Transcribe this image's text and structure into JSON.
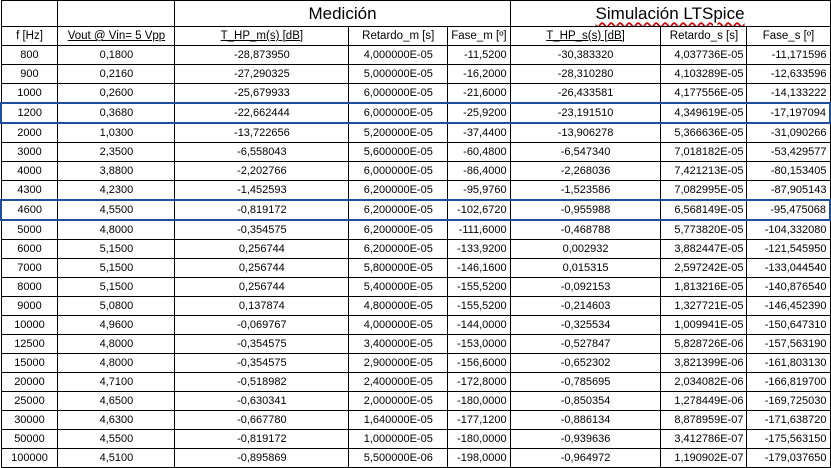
{
  "groups": {
    "medicion": "Medición",
    "simulacion": "Simulación LTSpice"
  },
  "headers": [
    "f [Hz]",
    "Vout @ Vin= 5 Vpp",
    "T_HP_m(s) [dB]",
    "Retardo_m [s]",
    "Fase_m [º]",
    "T_HP_s(s) [dB]",
    "Retardo_s [s]",
    "Fase_s [º]"
  ],
  "highlight_color": "#1f4e9c",
  "rows": [
    {
      "f": "800",
      "vout": "0,1800",
      "thpm": "-28,873950",
      "retm": "4,000000E-05",
      "fasem": "-11,5200",
      "thps": "-30,383320",
      "rets": "4,037736E-05",
      "fases": "-11,171596",
      "hl": false
    },
    {
      "f": "900",
      "vout": "0,2160",
      "thpm": "-27,290325",
      "retm": "5,000000E-05",
      "fasem": "-16,2000",
      "thps": "-28,310280",
      "rets": "4,103289E-05",
      "fases": "-12,633596",
      "hl": false
    },
    {
      "f": "1000",
      "vout": "0,2600",
      "thpm": "-25,679933",
      "retm": "6,000000E-05",
      "fasem": "-21,6000",
      "thps": "-26,433581",
      "rets": "4,177556E-05",
      "fases": "-14,133222",
      "hl": false
    },
    {
      "f": "1200",
      "vout": "0,3680",
      "thpm": "-22,662444",
      "retm": "6,000000E-05",
      "fasem": "-25,9200",
      "thps": "-23,191510",
      "rets": "4,349619E-05",
      "fases": "-17,197094",
      "hl": true
    },
    {
      "f": "2000",
      "vout": "1,0300",
      "thpm": "-13,722656",
      "retm": "5,200000E-05",
      "fasem": "-37,4400",
      "thps": "-13,906278",
      "rets": "5,366636E-05",
      "fases": "-31,090266",
      "hl": false
    },
    {
      "f": "3000",
      "vout": "2,3500",
      "thpm": "-6,558043",
      "retm": "5,600000E-05",
      "fasem": "-60,4800",
      "thps": "-6,547340",
      "rets": "7,018182E-05",
      "fases": "-53,429577",
      "hl": false
    },
    {
      "f": "4000",
      "vout": "3,8800",
      "thpm": "-2,202766",
      "retm": "6,000000E-05",
      "fasem": "-86,4000",
      "thps": "-2,268036",
      "rets": "7,421213E-05",
      "fases": "-80,153405",
      "hl": false
    },
    {
      "f": "4300",
      "vout": "4,2300",
      "thpm": "-1,452593",
      "retm": "6,200000E-05",
      "fasem": "-95,9760",
      "thps": "-1,523586",
      "rets": "7,082995E-05",
      "fases": "-87,905143",
      "hl": false
    },
    {
      "f": "4600",
      "vout": "4,5500",
      "thpm": "-0,819172",
      "retm": "6,200000E-05",
      "fasem": "-102,6720",
      "thps": "-0,955988",
      "rets": "6,568149E-05",
      "fases": "-95,475068",
      "hl": true
    },
    {
      "f": "5000",
      "vout": "4,8000",
      "thpm": "-0,354575",
      "retm": "6,200000E-05",
      "fasem": "-111,6000",
      "thps": "-0,468788",
      "rets": "5,773820E-05",
      "fases": "-104,332080",
      "hl": false
    },
    {
      "f": "6000",
      "vout": "5,1500",
      "thpm": "0,256744",
      "retm": "6,200000E-05",
      "fasem": "-133,9200",
      "thps": "0,002932",
      "rets": "3,882447E-05",
      "fases": "-121,545950",
      "hl": false
    },
    {
      "f": "7000",
      "vout": "5,1500",
      "thpm": "0,256744",
      "retm": "5,800000E-05",
      "fasem": "-146,1600",
      "thps": "0,015315",
      "rets": "2,597242E-05",
      "fases": "-133,044540",
      "hl": false
    },
    {
      "f": "8000",
      "vout": "5,1500",
      "thpm": "0,256744",
      "retm": "5,400000E-05",
      "fasem": "-155,5200",
      "thps": "-0,092153",
      "rets": "1,813216E-05",
      "fases": "-140,876540",
      "hl": false
    },
    {
      "f": "9000",
      "vout": "5,0800",
      "thpm": "0,137874",
      "retm": "4,800000E-05",
      "fasem": "-155,5200",
      "thps": "-0,214603",
      "rets": "1,327721E-05",
      "fases": "-146,452390",
      "hl": false
    },
    {
      "f": "10000",
      "vout": "4,9600",
      "thpm": "-0,069767",
      "retm": "4,000000E-05",
      "fasem": "-144,0000",
      "thps": "-0,325534",
      "rets": "1,009941E-05",
      "fases": "-150,647310",
      "hl": false
    },
    {
      "f": "12500",
      "vout": "4,8000",
      "thpm": "-0,354575",
      "retm": "3,400000E-05",
      "fasem": "-153,0000",
      "thps": "-0,527847",
      "rets": "5,828726E-06",
      "fases": "-157,563190",
      "hl": false
    },
    {
      "f": "15000",
      "vout": "4,8000",
      "thpm": "-0,354575",
      "retm": "2,900000E-05",
      "fasem": "-156,6000",
      "thps": "-0,652302",
      "rets": "3,821399E-06",
      "fases": "-161,803130",
      "hl": false
    },
    {
      "f": "20000",
      "vout": "4,7100",
      "thpm": "-0,518982",
      "retm": "2,400000E-05",
      "fasem": "-172,8000",
      "thps": "-0,785695",
      "rets": "2,034082E-06",
      "fases": "-166,819700",
      "hl": false
    },
    {
      "f": "25000",
      "vout": "4,6500",
      "thpm": "-0,630341",
      "retm": "2,000000E-05",
      "fasem": "-180,0000",
      "thps": "-0,850354",
      "rets": "1,278449E-06",
      "fases": "-169,725030",
      "hl": false
    },
    {
      "f": "30000",
      "vout": "4,6300",
      "thpm": "-0,667780",
      "retm": "1,640000E-05",
      "fasem": "-177,1200",
      "thps": "-0,886134",
      "rets": "8,878959E-07",
      "fases": "-171,638720",
      "hl": false
    },
    {
      "f": "50000",
      "vout": "4,5500",
      "thpm": "-0,819172",
      "retm": "1,000000E-05",
      "fasem": "-180,0000",
      "thps": "-0,939636",
      "rets": "3,412786E-07",
      "fases": "-175,563150",
      "hl": false
    },
    {
      "f": "100000",
      "vout": "4,5100",
      "thpm": "-0,895869",
      "retm": "5,500000E-06",
      "fasem": "-198,0000",
      "thps": "-0,964972",
      "rets": "1,190902E-07",
      "fases": "-179,037650",
      "hl": false
    }
  ]
}
